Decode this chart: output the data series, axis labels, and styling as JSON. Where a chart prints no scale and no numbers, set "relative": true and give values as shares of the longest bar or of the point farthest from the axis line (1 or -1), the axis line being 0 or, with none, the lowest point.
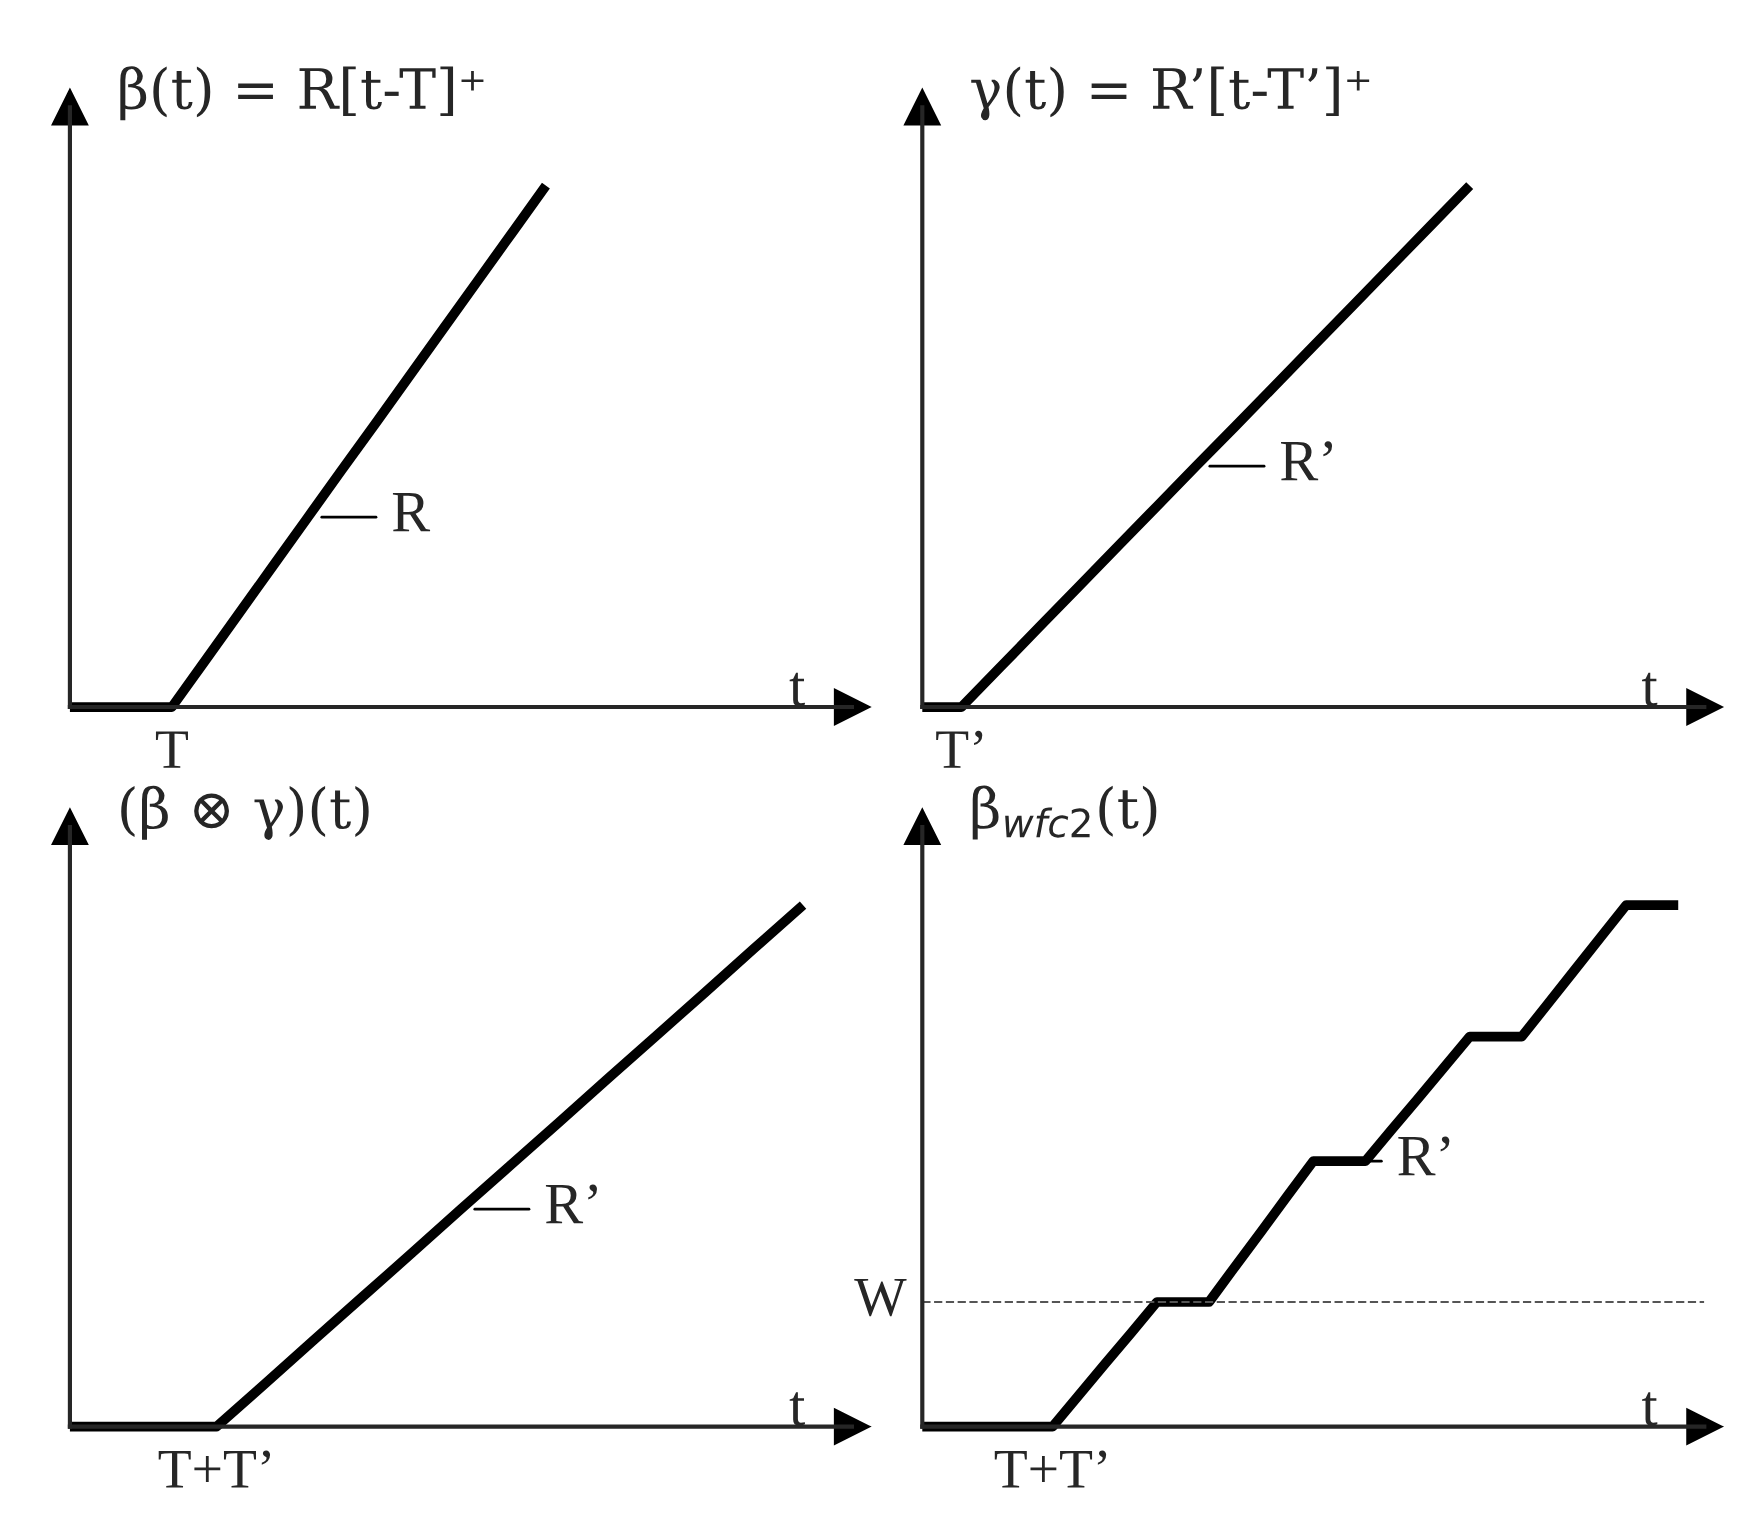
{
  "chart_data": [
    {
      "type": "line",
      "title": "β(t) = R[t-T]⁺",
      "xlabel": "t",
      "relative": true,
      "marker": "none",
      "line_style": "solid",
      "categories": [
        null,
        null,
        null,
        null,
        null,
        null,
        null,
        null,
        null,
        null,
        null,
        null,
        null,
        null,
        null,
        null,
        null,
        null,
        null,
        null,
        null,
        null,
        null,
        null
      ],
      "series": [
        {
          "color": "#000000",
          "values": [
            0,
            0,
            0,
            0,
            0.091,
            0.182,
            0.273,
            0.364,
            0.455,
            0.545,
            0.636,
            0.727,
            0.818,
            0.909,
            1,
            null,
            null,
            null,
            null,
            null,
            null,
            null,
            null,
            null
          ]
        }
      ],
      "annotations": [
        {
          "text": "T",
          "y": 0
        },
        "R"
      ]
    },
    {
      "type": "line",
      "title": "γ(t) = R’[t-T’]⁺",
      "xlabel": "t",
      "relative": true,
      "marker": "none",
      "line_style": "solid",
      "categories": [
        null,
        null,
        null,
        null,
        null,
        null,
        null,
        null,
        null,
        null,
        null,
        null,
        null,
        null,
        null,
        null,
        null,
        null,
        null,
        null,
        null
      ],
      "series": [
        {
          "color": "#000000",
          "values": [
            0,
            0,
            0.077,
            0.154,
            0.231,
            0.308,
            0.385,
            0.462,
            0.538,
            0.615,
            0.692,
            0.769,
            0.846,
            0.923,
            1,
            null,
            null,
            null,
            null,
            null,
            null
          ]
        }
      ],
      "annotations": [
        {
          "text": "T’",
          "y": 0
        },
        "R’"
      ]
    },
    {
      "type": "line",
      "title": "(β ⊗ γ)(t)",
      "xlabel": "t",
      "relative": true,
      "marker": "none",
      "line_style": "solid",
      "categories": [
        null,
        null,
        null,
        null,
        null,
        null,
        null,
        null,
        null,
        null,
        null,
        null,
        null,
        null,
        null,
        null,
        null
      ],
      "series": [
        {
          "color": "#000000",
          "values": [
            0,
            0,
            0,
            0,
            0.083,
            0.167,
            0.25,
            0.333,
            0.417,
            0.5,
            0.583,
            0.667,
            0.75,
            0.833,
            0.917,
            1,
            null
          ]
        }
      ],
      "annotations": [
        {
          "text": "T+T’",
          "y": 0
        },
        "R’"
      ]
    },
    {
      "type": "line",
      "title": "β$_{wfc2}$(t)",
      "xlabel": "t",
      "relative": true,
      "marker": "none",
      "line_style": "solid",
      "categories": [
        null,
        null,
        null,
        null,
        null,
        null,
        null,
        null,
        null,
        null,
        null,
        null,
        null,
        null,
        null,
        null,
        null,
        null,
        null,
        null,
        null,
        null,
        null,
        null,
        null,
        null,
        null,
        null,
        null,
        null,
        null
      ],
      "series": [
        {
          "color": "#000000",
          "values": [
            0,
            0,
            0,
            0,
            0,
            0,
            0.06,
            0.12,
            0.179,
            0.239,
            0.239,
            0.239,
            0.307,
            0.374,
            0.442,
            0.509,
            0.509,
            0.509,
            0.569,
            0.628,
            0.688,
            0.748,
            0.748,
            0.748,
            0.811,
            0.874,
            0.937,
            1,
            1,
            1,
            null
          ]
        }
      ],
      "ref_lines": [
        {
          "axis": "y",
          "value": 0.239,
          "label": "W",
          "color": "#555555",
          "line_style": "dashed"
        }
      ],
      "annotations": [
        {
          "text": "T+T’",
          "y": 0
        },
        "R’"
      ]
    }
  ]
}
